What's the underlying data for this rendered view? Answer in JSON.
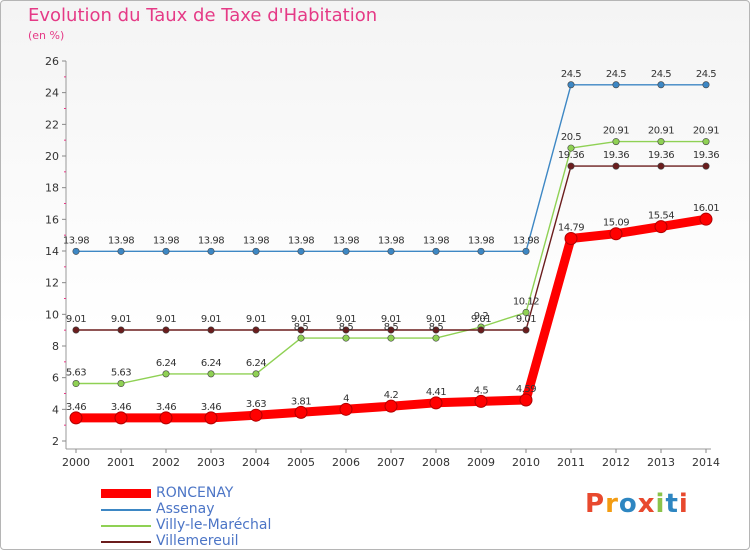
{
  "header": {
    "title": "Evolution du Taux de Taxe d'Habitation",
    "unit": "(en %)"
  },
  "brand": {
    "text": "Proxiti",
    "colors": [
      "#e8492e",
      "#f39c12",
      "#2e86c1",
      "#e8492e",
      "#8bc34a",
      "#2e86c1",
      "#e8492e"
    ]
  },
  "chart_data": {
    "type": "line",
    "title": "Evolution du Taux de Taxe d'Habitation",
    "ylabel": "(en %)",
    "xlabel": "",
    "ylim": [
      2,
      26
    ],
    "yticks": [
      2,
      4,
      6,
      8,
      10,
      12,
      14,
      16,
      18,
      20,
      22,
      24,
      26
    ],
    "grid": false,
    "legend_position": "bottom-left",
    "x": [
      "2000",
      "2001",
      "2002",
      "2003",
      "2004",
      "2005",
      "2006",
      "2007",
      "2008",
      "2009",
      "2010",
      "2011",
      "2012",
      "2013",
      "2014"
    ],
    "series": [
      {
        "name": "RONCENAY",
        "color": "#ff0000",
        "highlight": true,
        "values": [
          3.46,
          3.46,
          3.46,
          3.46,
          3.63,
          3.81,
          4,
          4.2,
          4.41,
          4.5,
          4.59,
          14.79,
          15.09,
          15.54,
          16.01
        ],
        "labels": [
          "3.46",
          "3.46",
          "3.46",
          "3.46",
          "3.63",
          "3.81",
          "4",
          "4.2",
          "4.41",
          "4.5",
          "4.59",
          "14.79",
          "15.09",
          "15.54",
          "16.01"
        ]
      },
      {
        "name": "Assenay",
        "color": "#3d87c4",
        "highlight": false,
        "values": [
          13.98,
          13.98,
          13.98,
          13.98,
          13.98,
          13.98,
          13.98,
          13.98,
          13.98,
          13.98,
          13.98,
          24.5,
          24.5,
          24.5,
          24.5
        ],
        "labels": [
          "13.98",
          "13.98",
          "13.98",
          "13.98",
          "13.98",
          "13.98",
          "13.98",
          "13.98",
          "13.98",
          "13.98",
          "13.98",
          "24.5",
          "24.5",
          "24.5",
          "24.5"
        ]
      },
      {
        "name": "Villy-le-Maréchal",
        "color": "#8fd154",
        "highlight": false,
        "values": [
          5.63,
          5.63,
          6.24,
          6.24,
          6.24,
          8.5,
          8.5,
          8.5,
          8.5,
          9.2,
          10.12,
          20.5,
          20.91,
          20.91,
          20.91
        ],
        "labels": [
          "5.63",
          "5.63",
          "6.24",
          "6.24",
          "6.24",
          "8.5",
          "8.5",
          "8.5",
          "8.5",
          "9.2",
          "10.12",
          "20.5",
          "20.91",
          "20.91",
          "20.91"
        ]
      },
      {
        "name": "Villemereuil",
        "color": "#6b1d1d",
        "highlight": false,
        "values": [
          9.01,
          9.01,
          9.01,
          9.01,
          9.01,
          9.01,
          9.01,
          9.01,
          9.01,
          9.01,
          9.01,
          19.36,
          19.36,
          19.36,
          19.36
        ],
        "labels": [
          "9.01",
          "9.01",
          "9.01",
          "9.01",
          "9.01",
          "9.01",
          "9.01",
          "9.01",
          "9.01",
          "9.01",
          "9.01",
          "19.36",
          "19.36",
          "19.36",
          "19.36"
        ]
      }
    ]
  }
}
